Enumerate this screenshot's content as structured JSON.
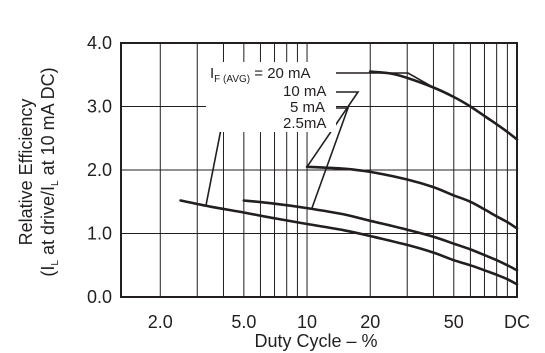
{
  "chart_data": {
    "type": "line",
    "title": "",
    "xlabel": "Duty Cycle – %",
    "ylabel_line1": "Relative Efficiency",
    "ylabel_line2": "(I",
    "ylabel_line2_sub": "L",
    "ylabel_line2_mid": " at drive/I",
    "ylabel_line2_sub2": "L",
    "ylabel_line2_end": " at 10 mA DC)",
    "x_scale": "log",
    "xlim": [
      1.3,
      100
    ],
    "ylim": [
      0,
      4.0
    ],
    "grid": true,
    "x_gridlines": [
      2,
      3,
      4,
      5,
      6,
      7,
      8,
      9,
      10,
      20,
      30,
      40,
      50,
      60,
      70,
      80,
      90
    ],
    "y_gridlines": [
      1.0,
      2.0,
      3.0
    ],
    "x_tick_labels": [
      {
        "value": 2,
        "label": "2.0"
      },
      {
        "value": 5,
        "label": "5.0"
      },
      {
        "value": 10,
        "label": "10"
      },
      {
        "value": 20,
        "label": "20"
      },
      {
        "value": 50,
        "label": "50"
      },
      {
        "value": 100,
        "label": "DC"
      }
    ],
    "y_tick_labels": [
      {
        "value": 0.0,
        "label": "0.0"
      },
      {
        "value": 1.0,
        "label": "1.0"
      },
      {
        "value": 2.0,
        "label": "2.0"
      },
      {
        "value": 3.0,
        "label": "3.0"
      },
      {
        "value": 4.0,
        "label": "4.0"
      }
    ],
    "series": [
      {
        "name": "20 mA",
        "x": [
          20,
          25,
          30,
          40,
          50,
          60,
          70,
          80,
          90,
          100
        ],
        "y": [
          3.55,
          3.52,
          3.45,
          3.3,
          3.15,
          3.0,
          2.85,
          2.72,
          2.6,
          2.48
        ]
      },
      {
        "name": "10 mA",
        "x": [
          10,
          15,
          20,
          30,
          40,
          50,
          60,
          70,
          80,
          90,
          100
        ],
        "y": [
          2.05,
          2.02,
          1.97,
          1.85,
          1.73,
          1.6,
          1.5,
          1.38,
          1.27,
          1.18,
          1.08
        ]
      },
      {
        "name": "5 mA",
        "x": [
          5,
          7,
          10,
          15,
          20,
          30,
          40,
          50,
          60,
          70,
          80,
          90,
          100
        ],
        "y": [
          1.52,
          1.47,
          1.4,
          1.3,
          1.2,
          1.06,
          0.95,
          0.84,
          0.75,
          0.66,
          0.58,
          0.5,
          0.42
        ]
      },
      {
        "name": "2.5 mA",
        "x": [
          2.5,
          3.5,
          5,
          7,
          10,
          15,
          20,
          30,
          40,
          50,
          60,
          70,
          80,
          90,
          100
        ],
        "y": [
          1.52,
          1.42,
          1.33,
          1.24,
          1.15,
          1.05,
          0.96,
          0.82,
          0.7,
          0.58,
          0.5,
          0.42,
          0.35,
          0.28,
          0.2
        ]
      }
    ],
    "annotations": {
      "label_main": "I",
      "label_main_sub": "F (AVG)",
      "label_main_rest": " = 20 mA",
      "label_10": "10 mA",
      "label_5": "5 mA",
      "label_25": "2.5mA"
    }
  }
}
